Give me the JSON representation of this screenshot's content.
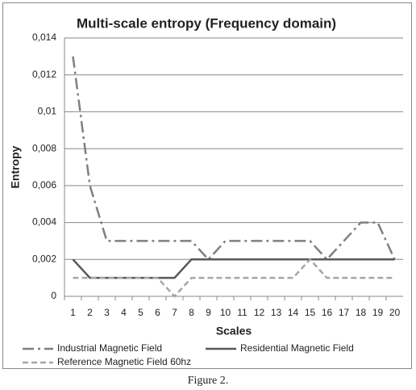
{
  "chart_data": {
    "type": "line",
    "title": "Multi-scale entropy (Frequency domain)",
    "x_label": "Scales",
    "y_label": "Entropy",
    "categories": [
      "1",
      "2",
      "3",
      "4",
      "5",
      "6",
      "7",
      "8",
      "9",
      "10",
      "11",
      "12",
      "13",
      "14",
      "15",
      "16",
      "17",
      "18",
      "19",
      "20"
    ],
    "series": [
      {
        "name": "Industrial Magnetic Field",
        "color": "#7f7f7f",
        "dash": "dash-dot",
        "values": [
          0.013,
          0.006,
          0.003,
          0.003,
          0.003,
          0.003,
          0.003,
          0.003,
          0.002,
          0.003,
          0.003,
          0.003,
          0.003,
          0.003,
          0.003,
          0.002,
          0.003,
          0.004,
          0.004,
          0.002
        ]
      },
      {
        "name": "Residential Magnetic Field",
        "color": "#595959",
        "dash": "solid",
        "values": [
          0.002,
          0.001,
          0.001,
          0.001,
          0.001,
          0.001,
          0.001,
          0.002,
          0.002,
          0.002,
          0.002,
          0.002,
          0.002,
          0.002,
          0.002,
          0.002,
          0.002,
          0.002,
          0.002,
          0.002
        ]
      },
      {
        "name": "Reference Magnetic Field 60hz",
        "color": "#a6a6a6",
        "dash": "dashed",
        "values": [
          0.001,
          0.001,
          0.001,
          0.001,
          0.001,
          0.001,
          0,
          0.001,
          0.001,
          0.001,
          0.001,
          0.001,
          0.001,
          0.001,
          0.002,
          0.001,
          0.001,
          0.001,
          0.001,
          0.001
        ]
      }
    ],
    "ylim": [
      0,
      0.014
    ],
    "yticks": [
      0,
      {
        "value": 0.002,
        "label": "0,002"
      },
      {
        "value": 0.004,
        "label": "0,004"
      },
      {
        "value": 0.006,
        "label": "0,006"
      },
      {
        "value": 0.008,
        "label": "0,008"
      },
      {
        "value": 0.01,
        "label": "0,01"
      },
      {
        "value": 0.012,
        "label": "0,012"
      },
      {
        "value": 0.014,
        "label": "0,014"
      }
    ],
    "grid": true,
    "legend": "bottom"
  },
  "caption": "Figure 2."
}
